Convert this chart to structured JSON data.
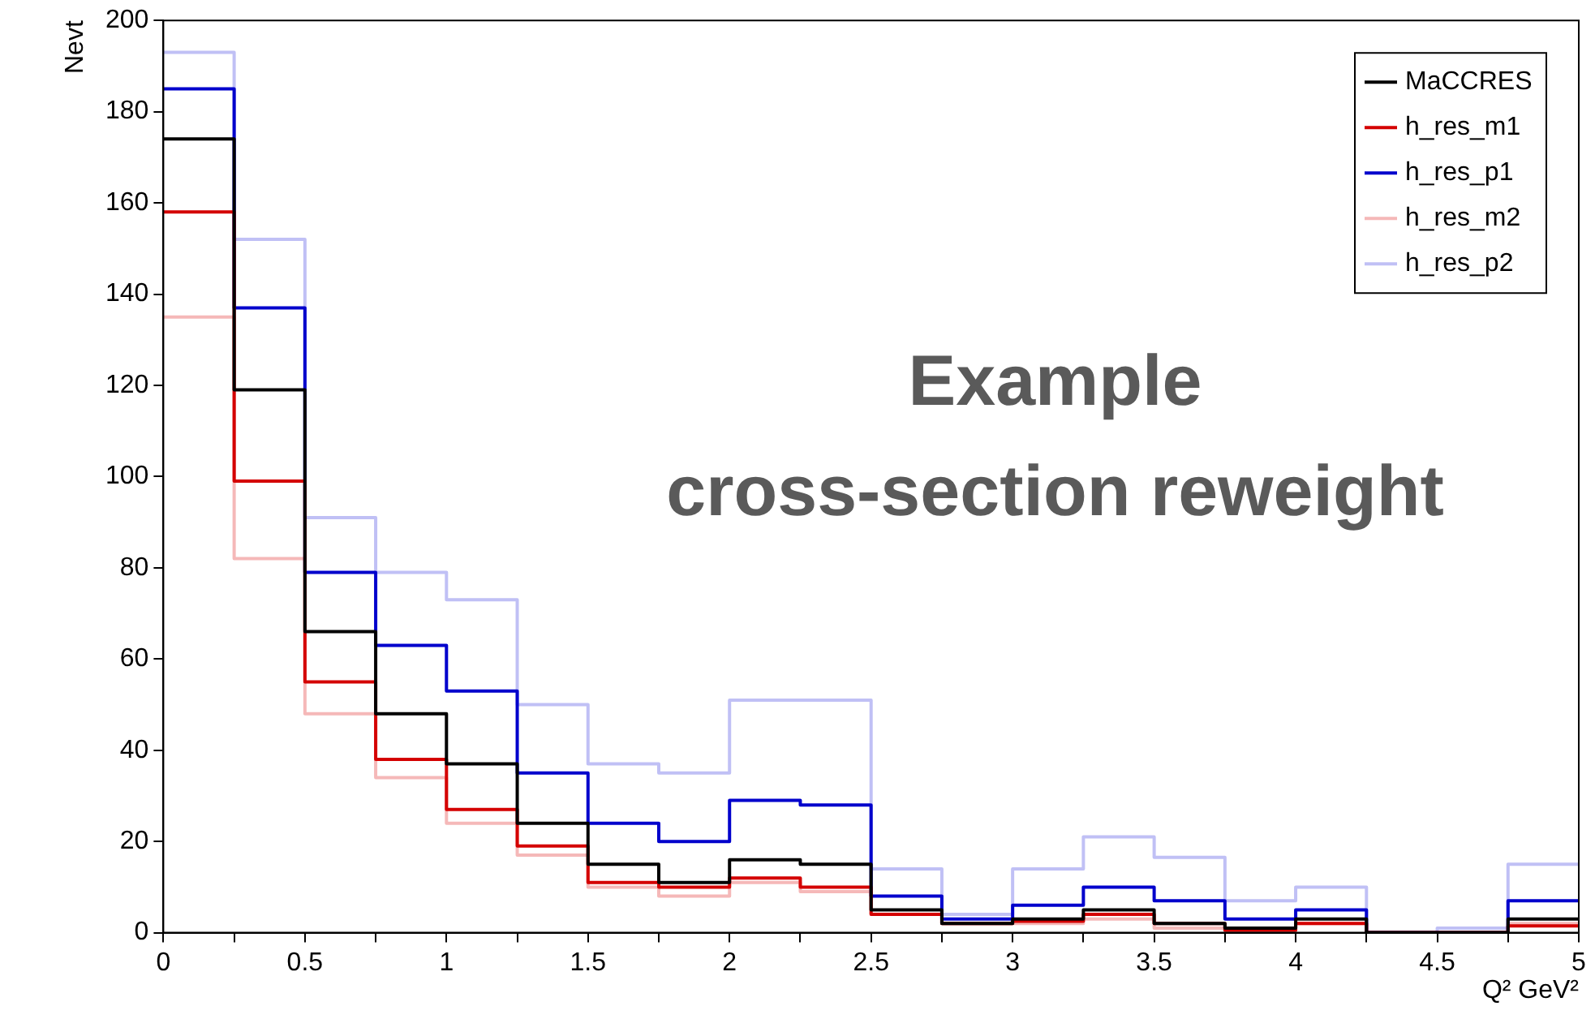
{
  "chart_data": {
    "type": "histogram",
    "xlabel": "Q² GeV²",
    "ylabel": "Nevt",
    "bins": [
      0,
      0.25,
      0.5,
      0.75,
      1,
      1.25,
      1.5,
      1.75,
      2,
      2.25,
      2.5,
      2.75,
      3,
      3.25,
      3.5,
      3.75,
      4,
      4.25,
      4.5,
      4.75,
      5
    ],
    "series": [
      {
        "name": "MaCCRES",
        "color": "#000000",
        "values": [
          174,
          119,
          66,
          48,
          37,
          24,
          15,
          11,
          16,
          15,
          5,
          2,
          3,
          5,
          2,
          1,
          3,
          0,
          0,
          3
        ]
      },
      {
        "name": "h_res_m1",
        "color": "#d40000",
        "values": [
          158,
          99,
          55,
          38,
          27,
          19,
          11,
          10,
          12,
          10,
          4,
          2,
          2.5,
          4,
          2,
          0.5,
          2,
          0,
          0,
          1.5
        ]
      },
      {
        "name": "h_res_p1",
        "color": "#0000cc",
        "values": [
          185,
          137,
          79,
          63,
          53,
          35,
          24,
          20,
          29,
          28,
          8,
          3,
          6,
          10,
          7,
          3,
          5,
          0,
          0,
          7
        ]
      },
      {
        "name": "h_res_m2",
        "color": "#f5b8b8",
        "values": [
          135,
          82,
          48,
          34,
          24,
          17,
          10,
          8,
          11,
          9,
          4,
          2,
          2,
          3,
          1,
          1,
          2,
          0,
          0,
          2
        ]
      },
      {
        "name": "h_res_p2",
        "color": "#c0c0f5",
        "values": [
          193,
          152,
          91,
          79,
          73,
          50,
          37,
          35,
          51,
          51,
          14,
          4,
          14,
          21,
          16.5,
          7,
          10,
          0,
          1,
          15
        ]
      }
    ],
    "xlim": [
      0,
      5
    ],
    "xticks": [
      0,
      {
        "value": 0.25,
        "label": null
      },
      0.5,
      {
        "value": 0.75,
        "label": null
      },
      1,
      {
        "value": 1.25,
        "label": null
      },
      1.5,
      {
        "value": 1.75,
        "label": null
      },
      2,
      {
        "value": 2.25,
        "label": null
      },
      2.5,
      {
        "value": 2.75,
        "label": null
      },
      3,
      {
        "value": 3.25,
        "label": null
      },
      3.5,
      {
        "value": 3.75,
        "label": null
      },
      4,
      {
        "value": 4.25,
        "label": null
      },
      4.5,
      {
        "value": 4.75,
        "label": null
      },
      5
    ],
    "ylim": [
      0,
      200
    ],
    "yticks": [
      0,
      20,
      40,
      60,
      80,
      100,
      120,
      140,
      160,
      180,
      200
    ],
    "grid": false,
    "legend": "top right",
    "annotations": [
      "Example",
      "cross-section reweight"
    ]
  }
}
